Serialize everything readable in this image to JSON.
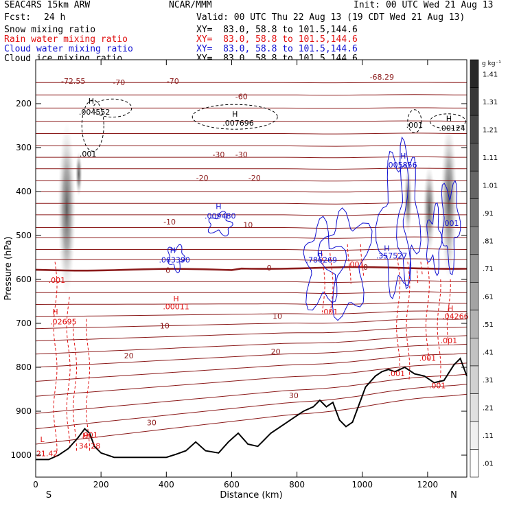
{
  "header": {
    "model": "SEAC4RS 15km ARW",
    "center": "NCAR/MMM",
    "init": "Init: 00 UTC Wed 21 Aug 13",
    "fcst_label": "Fcst:",
    "fcst_value": "24 h",
    "valid": "Valid: 00 UTC Thu 22 Aug 13 (19 CDT Wed 21 Aug 13)"
  },
  "legend": [
    {
      "name": "Snow mixing ratio",
      "xy": "XY=  83.0, 58.8 to 101.5,144.6",
      "color": "#000000"
    },
    {
      "name": "Rain water mixing ratio",
      "xy": "XY=  83.0, 58.8 to 101.5,144.6",
      "color": "#e01010"
    },
    {
      "name": "Cloud water mixing ratio",
      "xy": "XY=  83.0, 58.8 to 101.5,144.6",
      "color": "#1010d0"
    },
    {
      "name": "Cloud ice mixing ratio",
      "xy": "XY=  83.0, 58.8 to 101.5,144.6",
      "color": "#000000"
    }
  ],
  "colors": {
    "temperature": "#8b1a1a",
    "rain": "#e01010",
    "cloud_water": "#1010d0",
    "terrain": "#000000"
  },
  "chart_data": {
    "type": "cross-section",
    "xlabel": "Distance (km)",
    "ylabel": "Pressure (hPa)",
    "xlim": [
      0,
      1320
    ],
    "ylim": [
      1050,
      100
    ],
    "x_ticks": [
      0,
      200,
      400,
      600,
      800,
      1000,
      1200
    ],
    "y_ticks": [
      200,
      300,
      400,
      500,
      600,
      700,
      800,
      900,
      1000
    ],
    "y_tick_labels": [
      "200",
      "300",
      "400",
      "500",
      "600",
      "700",
      "800",
      "900",
      "1000"
    ],
    "end_labels": {
      "left": "S",
      "right": "N"
    },
    "colorbar": {
      "unit": "g kg⁻¹",
      "levels": [
        0.01,
        0.11,
        0.21,
        0.31,
        0.41,
        0.51,
        0.61,
        0.71,
        0.81,
        0.91,
        1.01,
        1.11,
        1.21,
        1.31,
        1.41
      ],
      "labels": [
        ".01",
        ".11",
        ".21",
        ".31",
        ".41",
        ".51",
        ".61",
        ".71",
        ".81",
        ".91",
        "1.01",
        "1.11",
        "1.21",
        "1.31",
        "1.41"
      ]
    },
    "temperature_labels": [
      {
        "text": "-72.55",
        "x": 115,
        "p": 155
      },
      {
        "text": "-70",
        "x": 255,
        "p": 158
      },
      {
        "text": "-70",
        "x": 420,
        "p": 155
      },
      {
        "text": "-68.29",
        "x": 1060,
        "p": 145
      },
      {
        "text": "-60",
        "x": 630,
        "p": 190
      },
      {
        "text": "-30",
        "x": 560,
        "p": 322
      },
      {
        "text": "-30",
        "x": 630,
        "p": 322
      },
      {
        "text": "-20",
        "x": 510,
        "p": 375
      },
      {
        "text": "-20",
        "x": 670,
        "p": 375
      },
      {
        "text": "-10",
        "x": 410,
        "p": 475
      },
      {
        "text": "10",
        "x": 650,
        "p": 482
      },
      {
        "text": "0",
        "x": 405,
        "p": 585
      },
      {
        "text": "0",
        "x": 715,
        "p": 580
      },
      {
        "text": "0",
        "x": 1010,
        "p": 578
      },
      {
        "text": "10",
        "x": 395,
        "p": 712
      },
      {
        "text": "10",
        "x": 740,
        "p": 690
      },
      {
        "text": "20",
        "x": 285,
        "p": 780
      },
      {
        "text": "20",
        "x": 735,
        "p": 770
      },
      {
        "text": "30",
        "x": 790,
        "p": 870
      },
      {
        "text": "30",
        "x": 355,
        "p": 932
      }
    ],
    "snow_ice_labels": [
      {
        "text": "H",
        "x": 170,
        "p": 200
      },
      {
        "text": ".004552",
        "x": 180,
        "p": 225
      },
      {
        "text": ".001",
        "x": 160,
        "p": 320
      },
      {
        "text": "H",
        "x": 610,
        "p": 230
      },
      {
        "text": ".007696",
        "x": 620,
        "p": 250
      },
      {
        "text": ".001",
        "x": 1160,
        "p": 255
      },
      {
        "text": "H",
        "x": 1265,
        "p": 240
      },
      {
        "text": ".00124",
        "x": 1275,
        "p": 262
      }
    ],
    "cloud_water_labels": [
      {
        "text": "H",
        "x": 1125,
        "p": 325
      },
      {
        "text": ".005856",
        "x": 1120,
        "p": 345
      },
      {
        "text": "H",
        "x": 560,
        "p": 440
      },
      {
        "text": ".009480",
        "x": 565,
        "p": 462
      },
      {
        "text": "H",
        "x": 420,
        "p": 540
      },
      {
        "text": ".063390",
        "x": 425,
        "p": 562
      },
      {
        "text": "H",
        "x": 870,
        "p": 548
      },
      {
        "text": ".786269",
        "x": 875,
        "p": 562
      },
      {
        "text": "H",
        "x": 1075,
        "p": 535
      },
      {
        "text": ".357527",
        "x": 1090,
        "p": 552
      },
      {
        "text": ".001",
        "x": 1270,
        "p": 478
      }
    ],
    "rain_labels": [
      {
        "text": ".001",
        "x": 65,
        "p": 608
      },
      {
        "text": "H",
        "x": 60,
        "p": 680
      },
      {
        "text": ".02695",
        "x": 85,
        "p": 702
      },
      {
        "text": "H",
        "x": 430,
        "p": 650
      },
      {
        "text": ".00011",
        "x": 430,
        "p": 668
      },
      {
        "text": ".001",
        "x": 980,
        "p": 572
      },
      {
        "text": ".001",
        "x": 900,
        "p": 680
      },
      {
        "text": "H",
        "x": 1270,
        "p": 672
      },
      {
        "text": ".04266",
        "x": 1285,
        "p": 690
      },
      {
        "text": ".001",
        "x": 1265,
        "p": 745
      },
      {
        "text": ".001",
        "x": 1200,
        "p": 785
      },
      {
        "text": ".001",
        "x": 1105,
        "p": 820
      },
      {
        "text": ".001",
        "x": 1230,
        "p": 848
      },
      {
        "text": "H",
        "x": 152,
        "p": 962
      },
      {
        "text": "34.28",
        "x": 165,
        "p": 985
      },
      {
        "text": ".001",
        "x": 165,
        "p": 960
      },
      {
        "text": "L",
        "x": 20,
        "p": 970
      },
      {
        "text": "21.42",
        "x": 35,
        "p": 1002
      }
    ]
  }
}
